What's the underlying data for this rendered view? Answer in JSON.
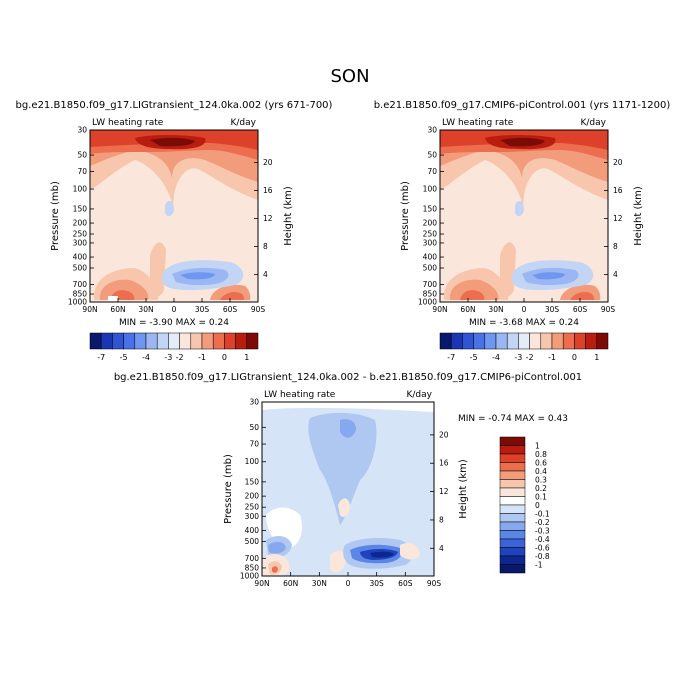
{
  "season": "SON",
  "panels": [
    {
      "id": "top-left",
      "case": "bg.e21.B1850.f09_g17.LIGtransient_124.0ka.002 (yrs 671-700)",
      "var_label": "LW heating rate",
      "units": "K/day",
      "stats": "MIN =  -3.90   MAX =   0.24"
    },
    {
      "id": "top-right",
      "case": "b.e21.B1850.f09_g17.CMIP6-piControl.001 (yrs 1171-1200)",
      "var_label": "LW heating rate",
      "units": "K/day",
      "stats": "MIN =  -3.68   MAX =   0.24"
    },
    {
      "id": "bottom",
      "case": "bg.e21.B1850.f09_g17.LIGtransient_124.0ka.002 - b.e21.B1850.f09_g17.CMIP6-piControl.001",
      "var_label": "LW heating rate",
      "units": "K/day",
      "stats": "MIN =  -0.74   MAX =   0.43"
    }
  ],
  "chart_data": [
    {
      "type": "heatmap",
      "panel": "top-left",
      "xlabel": "",
      "ylabel": "Pressure (mb)",
      "ylabel_right": "Height (km)",
      "x_ticks": [
        "90N",
        "60N",
        "30N",
        "0",
        "30S",
        "60S",
        "90S"
      ],
      "x_values": [
        90,
        60,
        30,
        0,
        -30,
        -60,
        -90
      ],
      "y_ticks": [
        "30",
        "50",
        "70",
        "100",
        "150",
        "200",
        "250",
        "300",
        "400",
        "500",
        "700",
        "850",
        "1000"
      ],
      "y_values": [
        30,
        50,
        70,
        100,
        150,
        200,
        250,
        300,
        400,
        500,
        700,
        850,
        1000
      ],
      "height_ticks": [
        "20",
        "16",
        "12",
        "8",
        "4"
      ],
      "height_values": [
        20,
        16,
        12,
        8,
        4
      ],
      "colorbar": {
        "labels": [
          "-7",
          "-5",
          "-4",
          "-3",
          "-2",
          "-1",
          "0",
          "1"
        ],
        "colors": [
          "#08186b",
          "#1b36b4",
          "#2f55d4",
          "#4a72e8",
          "#6f96f0",
          "#9ab6f3",
          "#c3d5f5",
          "#e4ecf8",
          "#fbe6dc",
          "#f8c6ad",
          "#f39c7c",
          "#ec6e4f",
          "#de4129",
          "#b81d0f",
          "#7c0a05"
        ]
      }
    },
    {
      "type": "heatmap",
      "panel": "top-right",
      "xlabel": "",
      "ylabel": "Pressure (mb)",
      "ylabel_right": "Height (km)",
      "x_ticks": [
        "90N",
        "60N",
        "30N",
        "0",
        "30S",
        "60S",
        "90S"
      ],
      "x_values": [
        90,
        60,
        30,
        0,
        -30,
        -60,
        -90
      ],
      "y_ticks": [
        "30",
        "50",
        "70",
        "100",
        "150",
        "200",
        "250",
        "300",
        "400",
        "500",
        "700",
        "850",
        "1000"
      ],
      "y_values": [
        30,
        50,
        70,
        100,
        150,
        200,
        250,
        300,
        400,
        500,
        700,
        850,
        1000
      ],
      "height_ticks": [
        "20",
        "16",
        "12",
        "8",
        "4"
      ],
      "height_values": [
        20,
        16,
        12,
        8,
        4
      ],
      "colorbar": {
        "labels": [
          "-7",
          "-5",
          "-4",
          "-3",
          "-2",
          "-1",
          "0",
          "1"
        ],
        "colors": [
          "#08186b",
          "#1b36b4",
          "#2f55d4",
          "#4a72e8",
          "#6f96f0",
          "#9ab6f3",
          "#c3d5f5",
          "#e4ecf8",
          "#fbe6dc",
          "#f8c6ad",
          "#f39c7c",
          "#ec6e4f",
          "#de4129",
          "#b81d0f",
          "#7c0a05"
        ]
      }
    },
    {
      "type": "heatmap",
      "panel": "bottom",
      "xlabel": "",
      "ylabel": "Pressure (mb)",
      "ylabel_right": "Height (km)",
      "x_ticks": [
        "90N",
        "60N",
        "30N",
        "0",
        "30S",
        "60S",
        "90S"
      ],
      "x_values": [
        90,
        60,
        30,
        0,
        -30,
        -60,
        -90
      ],
      "y_ticks": [
        "30",
        "50",
        "70",
        "100",
        "150",
        "200",
        "250",
        "300",
        "400",
        "500",
        "700",
        "850",
        "1000"
      ],
      "y_values": [
        30,
        50,
        70,
        100,
        150,
        200,
        250,
        300,
        400,
        500,
        700,
        850,
        1000
      ],
      "height_ticks": [
        "20",
        "16",
        "12",
        "8",
        "4"
      ],
      "height_values": [
        20,
        16,
        12,
        8,
        4
      ],
      "colorbar": {
        "labels": [
          "1",
          "0.8",
          "0.6",
          "0.4",
          "0.3",
          "0.2",
          "0.1",
          "0",
          "-0.1",
          "-0.2",
          "-0.3",
          "-0.4",
          "-0.6",
          "-0.8",
          "-1"
        ],
        "colors": [
          "#7c0a05",
          "#b81d0f",
          "#de4129",
          "#ec6e4f",
          "#f39c7c",
          "#f8c6ad",
          "#fbe6dc",
          "#ffffff",
          "#d6e4f7",
          "#afc8f2",
          "#86a8ee",
          "#5b85e6",
          "#3a63da",
          "#2142bd",
          "#0d2690",
          "#08186b"
        ]
      }
    }
  ]
}
